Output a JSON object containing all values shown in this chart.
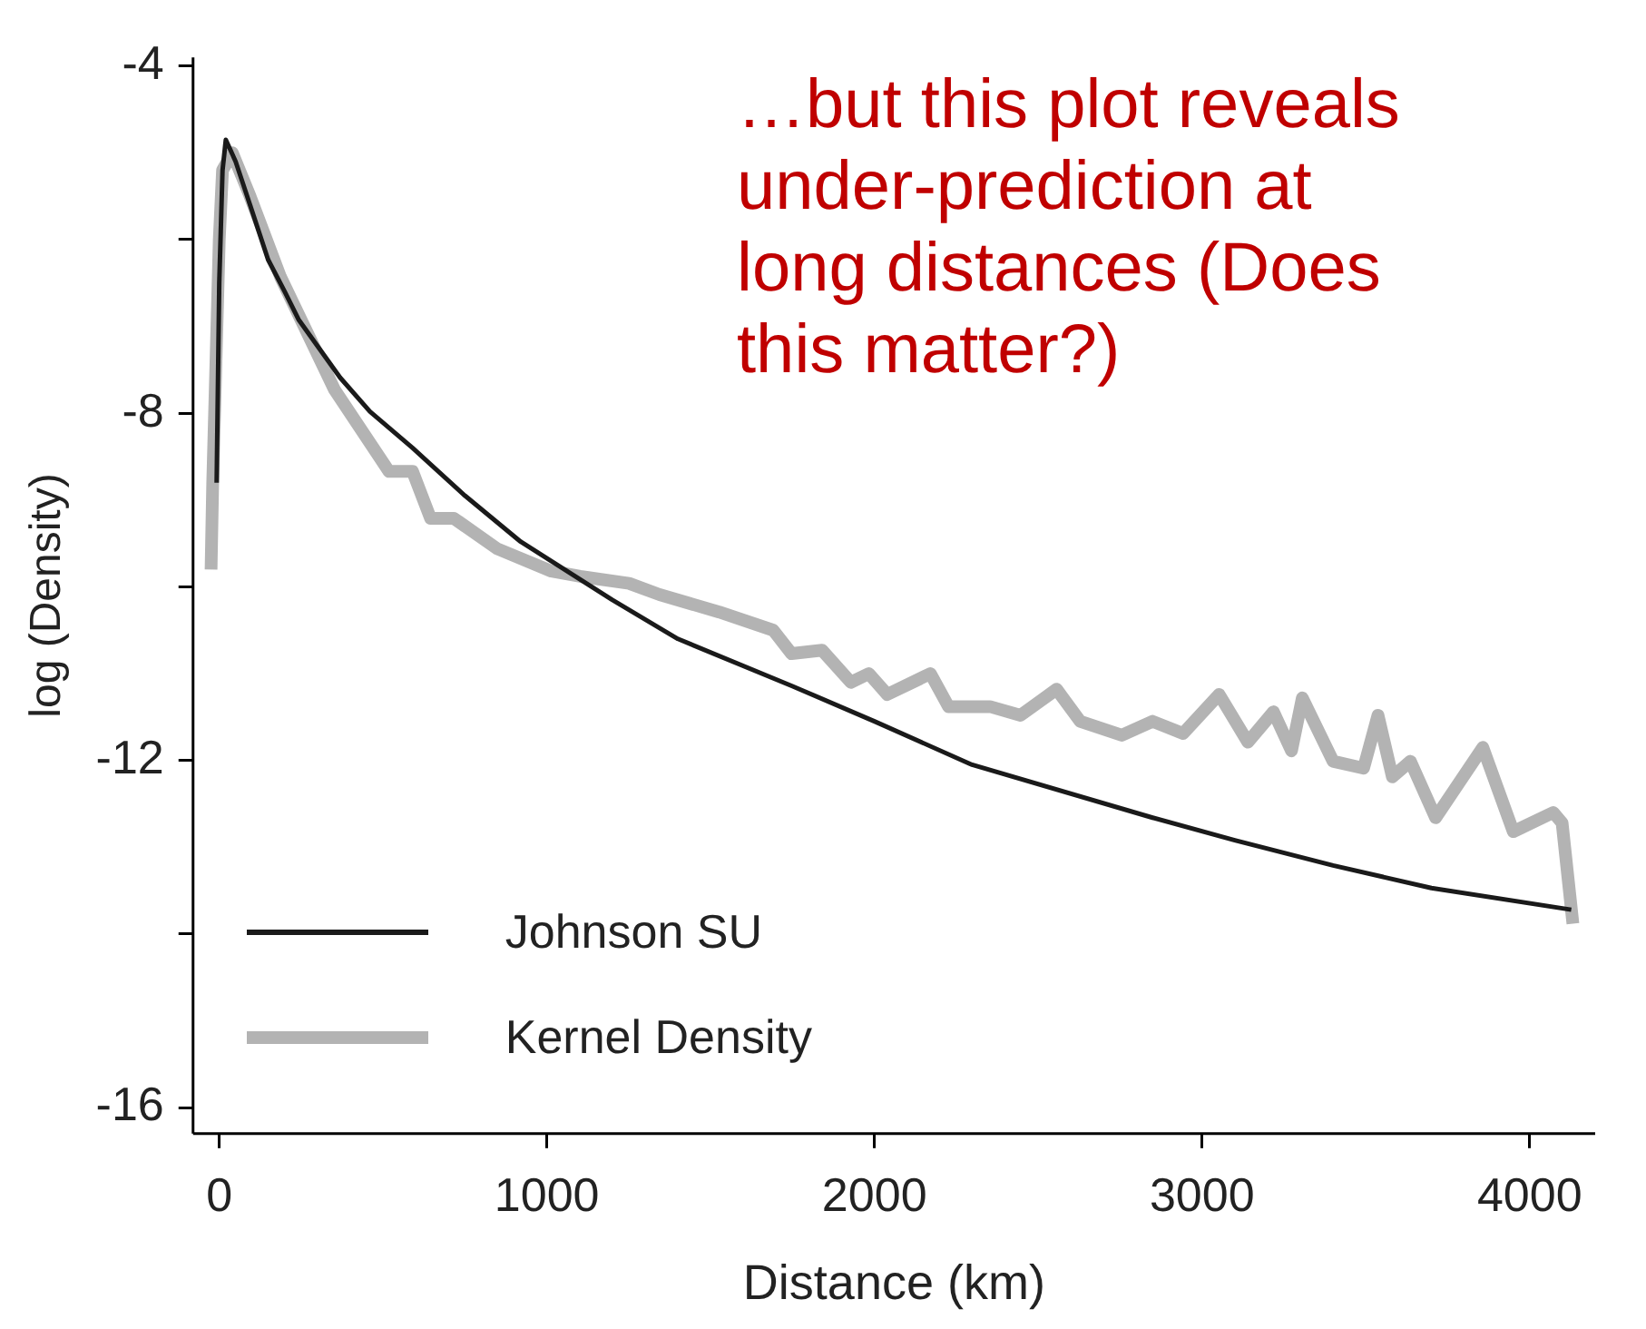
{
  "chart_data": {
    "type": "line",
    "xlabel": "Distance (km)",
    "ylabel": "log (Density)",
    "annotations": [
      "…but this plot reveals under-prediction at long distances (Does this matter?)"
    ],
    "xlim": [
      -80,
      4200
    ],
    "ylim": [
      -16.3,
      -3.9
    ],
    "xticks": [
      0,
      1000,
      2000,
      3000,
      4000
    ],
    "yticks": [
      -4,
      {
        "value": -6,
        "label": null
      },
      -8,
      {
        "value": -10,
        "label": null
      },
      -12,
      {
        "value": -14,
        "label": null
      },
      -16
    ],
    "legend": "bottom left",
    "grid": false,
    "marker": "none",
    "line_style": "solid",
    "series": [
      {
        "name": "Kernel Density",
        "color": "#b3b3b3",
        "x": [
          -25,
          -20,
          0,
          10,
          40,
          94,
          187,
          352,
          518,
          590,
          645,
          716,
          848,
          1014,
          1102,
          1251,
          1344,
          1526,
          1691,
          1747,
          1840,
          1928,
          1983,
          2039,
          2171,
          2226,
          2353,
          2446,
          2556,
          2628,
          2755,
          2849,
          2942,
          3052,
          3140,
          3218,
          3273,
          3306,
          3400,
          3493,
          3537,
          3581,
          3636,
          3713,
          3857,
          3950,
          4072,
          4099,
          4132
        ],
        "values": [
          -9.8,
          -8.8,
          -6.0,
          -5.2,
          -5.0,
          -5.5,
          -6.43,
          -7.73,
          -8.67,
          -8.67,
          -9.21,
          -9.21,
          -9.56,
          -9.82,
          -9.88,
          -9.96,
          -10.09,
          -10.29,
          -10.5,
          -10.77,
          -10.73,
          -11.1,
          -11.0,
          -11.24,
          -11.0,
          -11.38,
          -11.38,
          -11.48,
          -11.18,
          -11.55,
          -11.71,
          -11.55,
          -11.69,
          -11.24,
          -11.79,
          -11.44,
          -11.89,
          -11.28,
          -12.01,
          -12.09,
          -11.48,
          -12.19,
          -12.01,
          -12.66,
          -11.85,
          -12.82,
          -12.6,
          -12.72,
          -13.88
        ]
      },
      {
        "name": "Johnson SU",
        "color": "#1a1a1a",
        "x": [
          -8,
          0,
          10,
          20,
          50,
          94,
          149,
          200,
          242,
          369,
          460,
          590,
          750,
          920,
          1200,
          1400,
          1747,
          2000,
          2298,
          2849,
          3100,
          3400,
          3700,
          4127
        ],
        "values": [
          -8.8,
          -6.5,
          -5.2,
          -4.85,
          -5.1,
          -5.6,
          -6.23,
          -6.6,
          -6.92,
          -7.59,
          -7.98,
          -8.4,
          -8.95,
          -9.48,
          -10.15,
          -10.6,
          -11.14,
          -11.55,
          -12.05,
          -12.66,
          -12.92,
          -13.21,
          -13.47,
          -13.72
        ]
      }
    ]
  }
}
